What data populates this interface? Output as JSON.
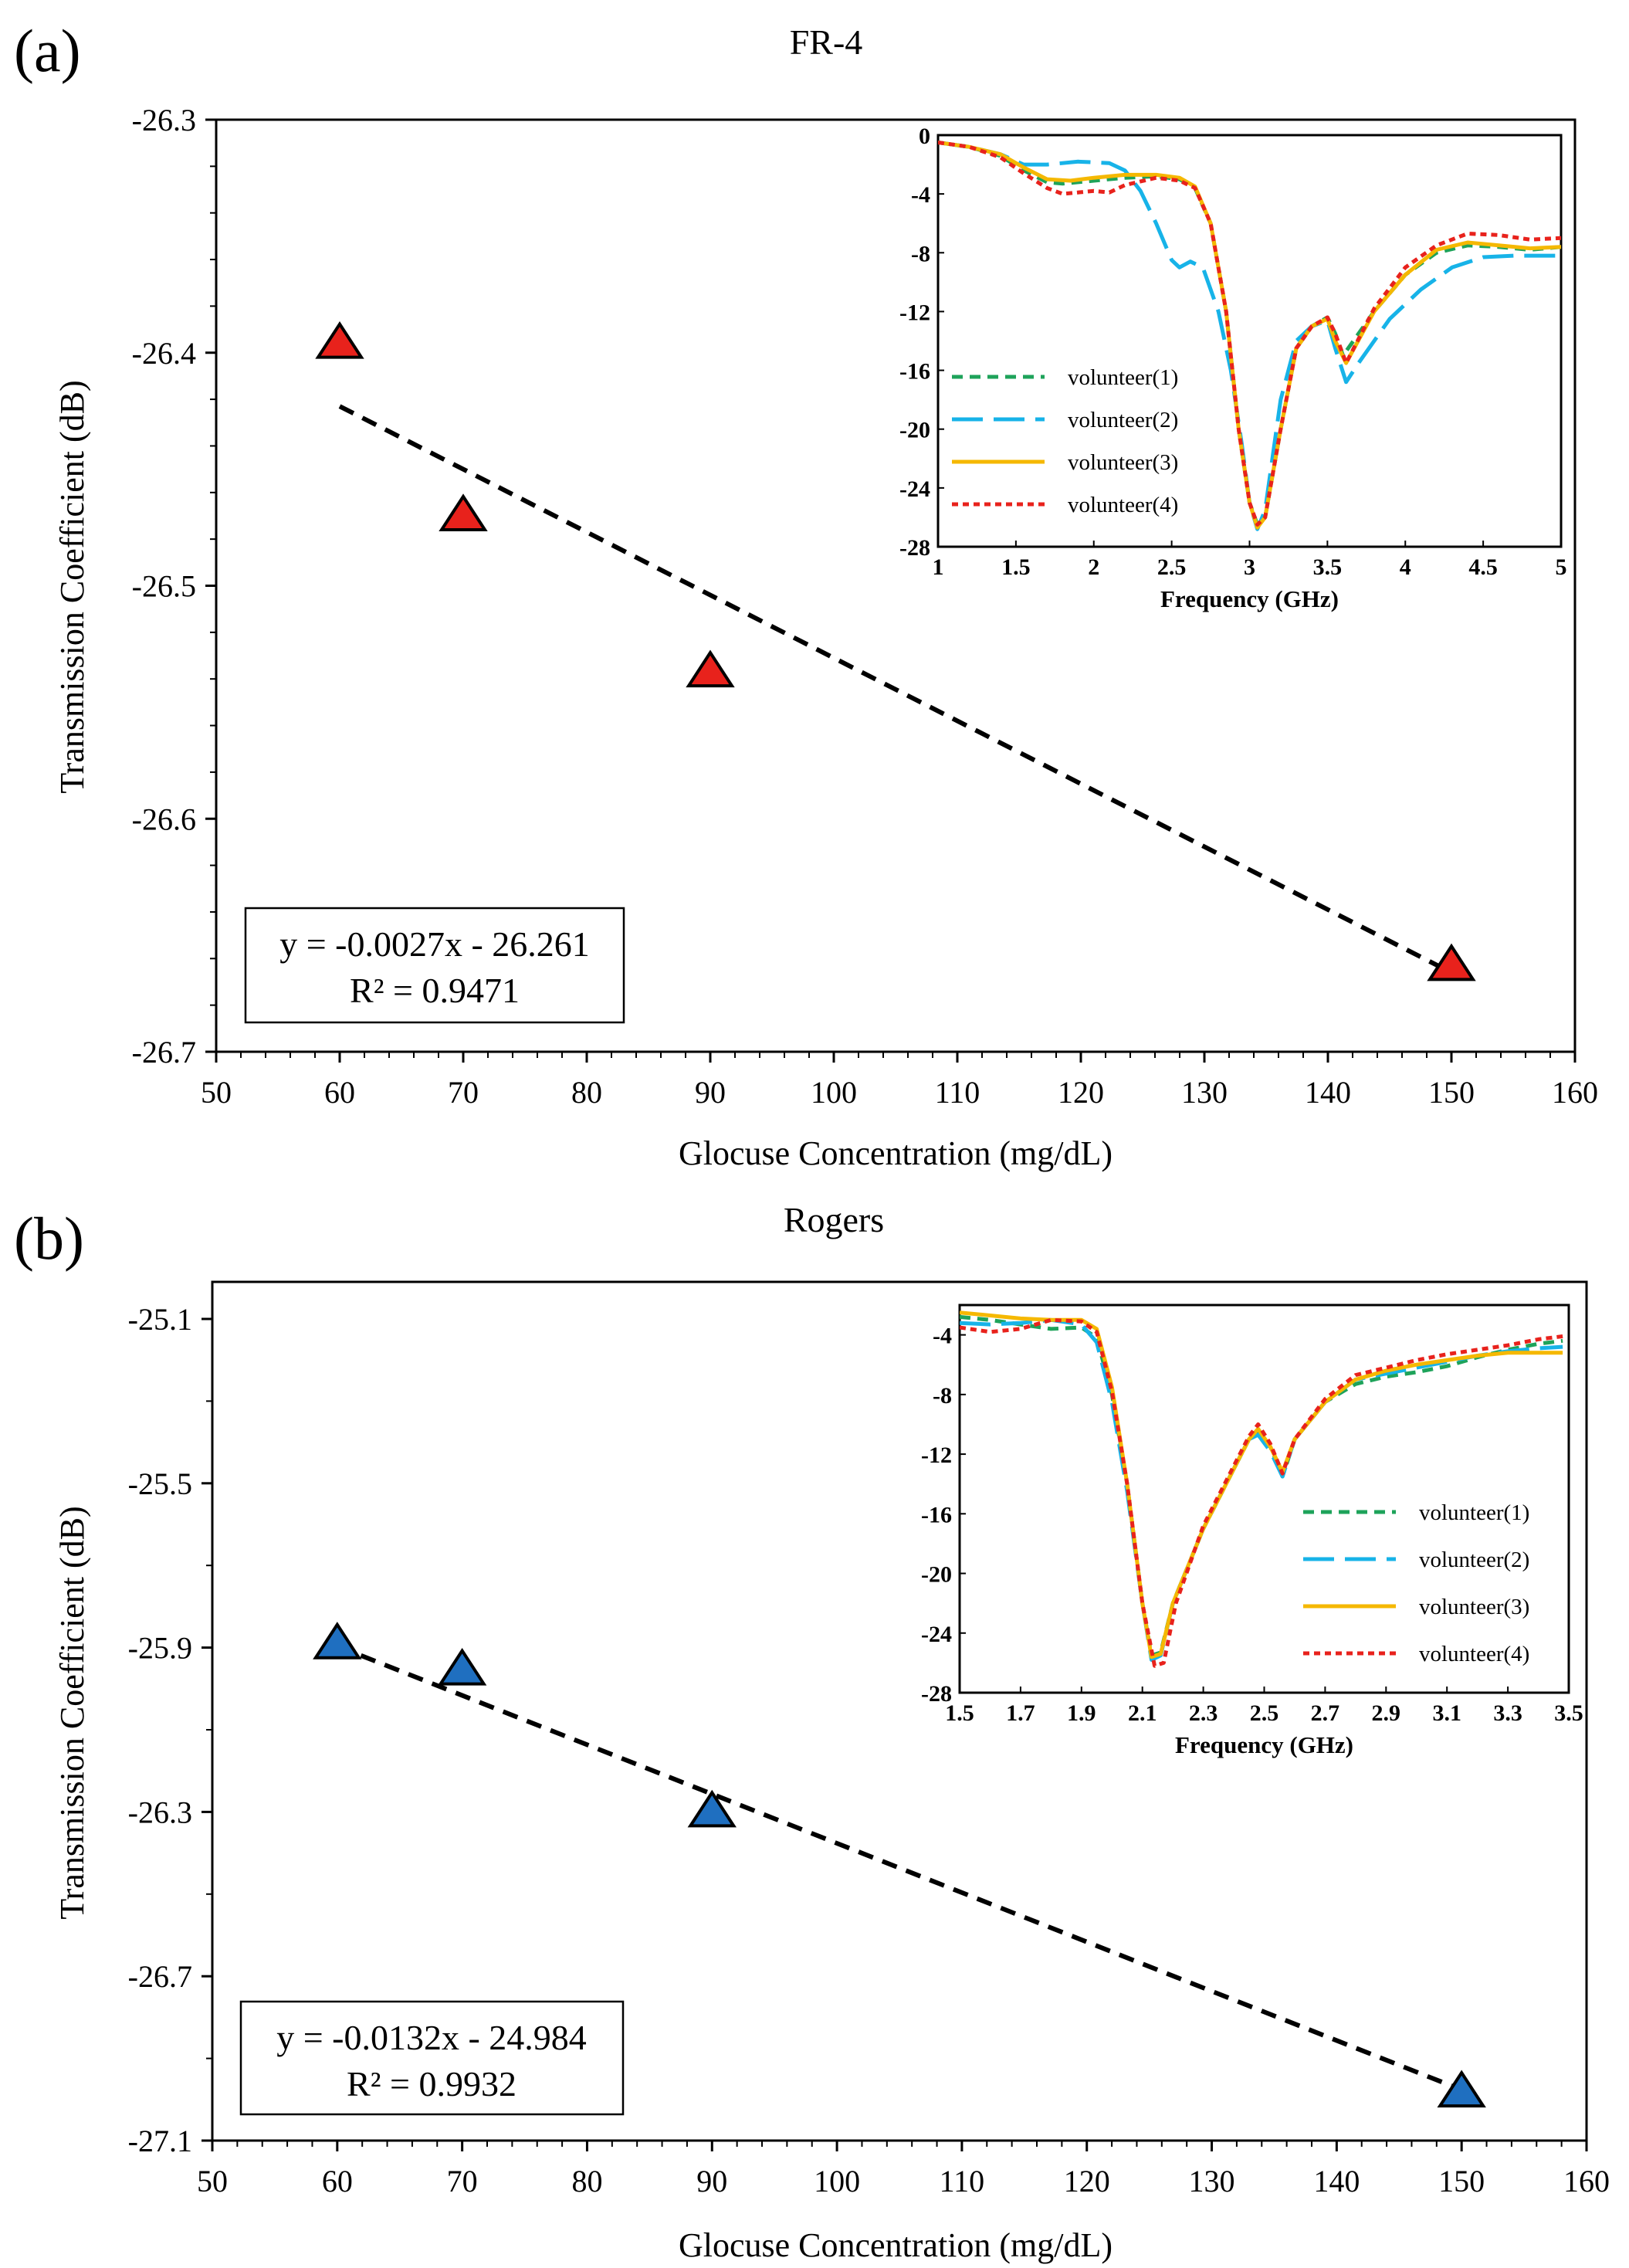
{
  "chart_data": [
    {
      "type": "scatter",
      "panel_label": "(a)",
      "title": "FR-4",
      "xlabel": "Glocuse Concentration (mg/dL)",
      "ylabel": "Transmission Coefficient (dB)",
      "xlim": [
        50,
        160
      ],
      "ylim": [
        -26.7,
        -26.3
      ],
      "xticks": [
        "50",
        "60",
        "70",
        "80",
        "90",
        "100",
        "110",
        "120",
        "130",
        "140",
        "150",
        "160"
      ],
      "yticks": [
        "-26.3",
        "-26.4",
        "-26.5",
        "-26.6",
        "-26.7"
      ],
      "marker_color": "#e8221c",
      "points": {
        "x": [
          60,
          70,
          90,
          150
        ],
        "y": [
          -26.396,
          -26.47,
          -26.537,
          -26.663
        ]
      },
      "trendline": {
        "slope": -0.0027,
        "intercept": -26.261,
        "x_range": [
          60,
          150
        ]
      },
      "equation": "y = -0.0027x - 26.261",
      "r_squared": "R² = 0.9471",
      "inset": {
        "type": "line",
        "xlabel": "Frequency (GHz)",
        "xlim": [
          1,
          5
        ],
        "ylim": [
          -28,
          0
        ],
        "xticks": [
          "1",
          "1.5",
          "2",
          "2.5",
          "3",
          "3.5",
          "4",
          "4.5",
          "5"
        ],
        "yticks": [
          "0",
          "-4",
          "-8",
          "-12",
          "-16",
          "-20",
          "-24",
          "-28"
        ],
        "legend_position": "left",
        "series": [
          {
            "name": "volunteer(1)",
            "color": "#1ea35a",
            "dash": "14,9",
            "x": [
              1,
              1.2,
              1.4,
              1.55,
              1.7,
              1.8,
              2.0,
              2.2,
              2.4,
              2.55,
              2.65,
              2.75,
              2.85,
              2.93,
              3.0,
              3.05,
              3.1,
              3.2,
              3.3,
              3.4,
              3.5,
              3.55,
              3.6,
              3.8,
              4.0,
              4.2,
              4.4,
              4.6,
              4.8,
              5
            ],
            "y": [
              -0.5,
              -0.8,
              -1.4,
              -2.4,
              -3.2,
              -3.3,
              -3.1,
              -2.9,
              -2.8,
              -3.0,
              -3.6,
              -6.0,
              -12.0,
              -20.0,
              -25.0,
              -26.5,
              -26.0,
              -20.0,
              -14.5,
              -13.0,
              -12.4,
              -13.5,
              -15.0,
              -12.0,
              -9.5,
              -8.0,
              -7.5,
              -7.6,
              -7.8,
              -7.6
            ]
          },
          {
            "name": "volunteer(2)",
            "color": "#17b3e8",
            "dash": "40,14",
            "x": [
              1,
              1.2,
              1.4,
              1.55,
              1.7,
              1.9,
              2.1,
              2.2,
              2.3,
              2.4,
              2.5,
              2.55,
              2.62,
              2.7,
              2.8,
              2.88,
              2.95,
              3.0,
              3.05,
              3.1,
              3.2,
              3.3,
              3.4,
              3.5,
              3.55,
              3.62,
              3.7,
              3.9,
              4.1,
              4.3,
              4.5,
              4.7,
              5
            ],
            "y": [
              -0.5,
              -0.8,
              -1.3,
              -2.0,
              -2.0,
              -1.8,
              -1.9,
              -2.4,
              -3.8,
              -6.0,
              -8.5,
              -9.0,
              -8.6,
              -9.0,
              -12.0,
              -16.0,
              -21.0,
              -25.0,
              -26.8,
              -25.5,
              -18.0,
              -14.0,
              -13.0,
              -12.6,
              -14.5,
              -16.8,
              -15.5,
              -12.5,
              -10.5,
              -9.0,
              -8.3,
              -8.2,
              -8.2
            ]
          },
          {
            "name": "volunteer(3)",
            "color": "#f5b800",
            "dash": "",
            "x": [
              1,
              1.2,
              1.4,
              1.55,
              1.7,
              1.85,
              2.0,
              2.2,
              2.4,
              2.55,
              2.65,
              2.75,
              2.85,
              2.93,
              3.0,
              3.05,
              3.1,
              3.2,
              3.3,
              3.4,
              3.5,
              3.55,
              3.62,
              3.8,
              4.0,
              4.2,
              4.4,
              4.6,
              4.8,
              5
            ],
            "y": [
              -0.5,
              -0.8,
              -1.3,
              -2.2,
              -3.0,
              -3.1,
              -2.9,
              -2.7,
              -2.7,
              -2.9,
              -3.5,
              -6.0,
              -12.0,
              -20.0,
              -25.0,
              -26.7,
              -26.0,
              -20.0,
              -14.5,
              -13.0,
              -12.5,
              -14.0,
              -15.5,
              -12.0,
              -9.5,
              -7.8,
              -7.3,
              -7.5,
              -7.7,
              -7.6
            ]
          },
          {
            "name": "volunteer(4)",
            "color": "#e8221c",
            "dash": "8,6",
            "x": [
              1,
              1.2,
              1.4,
              1.55,
              1.7,
              1.8,
              2.0,
              2.1,
              2.2,
              2.4,
              2.55,
              2.65,
              2.75,
              2.85,
              2.93,
              3.0,
              3.05,
              3.1,
              3.2,
              3.3,
              3.4,
              3.5,
              3.55,
              3.62,
              3.8,
              4.0,
              4.2,
              4.4,
              4.6,
              4.8,
              5
            ],
            "y": [
              -0.5,
              -0.8,
              -1.5,
              -2.6,
              -3.6,
              -4.0,
              -3.8,
              -3.9,
              -3.4,
              -2.9,
              -3.1,
              -3.6,
              -6.0,
              -12.0,
              -20.0,
              -25.0,
              -26.5,
              -26.0,
              -20.0,
              -14.5,
              -13.0,
              -12.4,
              -13.5,
              -15.5,
              -11.8,
              -9.0,
              -7.5,
              -6.7,
              -6.8,
              -7.1,
              -7.0
            ]
          }
        ]
      }
    },
    {
      "type": "scatter",
      "panel_label": "(b)",
      "title": "Rogers",
      "xlabel": "Glocuse Concentration (mg/dL)",
      "ylabel": "Transmission Coefficient (dB)",
      "xlim": [
        50,
        160
      ],
      "ylim": [
        -27.1,
        -24.9
      ],
      "xticks": [
        "50",
        "60",
        "70",
        "80",
        "90",
        "100",
        "110",
        "120",
        "130",
        "140",
        "150",
        "160"
      ],
      "yticks": [
        "-25.1",
        "-25.5",
        "-25.9",
        "-26.3",
        "-26.7",
        "-27.1"
      ],
      "marker_color": "#1f6fc0",
      "points": {
        "x": [
          60,
          70,
          90,
          150
        ],
        "y": [
          -25.77,
          -25.84,
          -26.22,
          -26.97
        ]
      },
      "trendline": {
        "slope": -0.0132,
        "intercept": -24.984,
        "x_range": [
          60,
          150
        ]
      },
      "equation": "y = -0.0132x - 24.984",
      "r_squared": "R² = 0.9932",
      "inset": {
        "type": "line",
        "xlabel": "Frequency (GHz)",
        "xlim": [
          1.5,
          3.5
        ],
        "ylim": [
          -28,
          -2
        ],
        "xticks": [
          "1.5",
          "1.7",
          "1.9",
          "2.1",
          "2.3",
          "2.5",
          "2.7",
          "2.9",
          "3.1",
          "3.3",
          "3.5"
        ],
        "yticks": [
          "-4",
          "-8",
          "-12",
          "-16",
          "-20",
          "-24",
          "-28"
        ],
        "legend_position": "right",
        "series": [
          {
            "name": "volunteer(1)",
            "color": "#1ea35a",
            "dash": "14,9",
            "x": [
              1.5,
              1.6,
              1.7,
              1.8,
              1.9,
              1.95,
              2.0,
              2.05,
              2.1,
              2.13,
              2.16,
              2.2,
              2.3,
              2.4,
              2.45,
              2.48,
              2.52,
              2.56,
              2.6,
              2.7,
              2.8,
              2.9,
              3.0,
              3.1,
              3.2,
              3.3,
              3.4,
              3.48
            ],
            "y": [
              -2.8,
              -3.0,
              -3.3,
              -3.6,
              -3.5,
              -4.2,
              -8.0,
              -14.0,
              -22.0,
              -25.5,
              -25.3,
              -22.0,
              -17.0,
              -13.0,
              -11.0,
              -10.5,
              -11.5,
              -13.5,
              -11.0,
              -8.5,
              -7.3,
              -6.8,
              -6.5,
              -6.1,
              -5.5,
              -5.0,
              -4.6,
              -4.4
            ]
          },
          {
            "name": "volunteer(2)",
            "color": "#17b3e8",
            "dash": "40,14",
            "x": [
              1.5,
              1.6,
              1.7,
              1.8,
              1.9,
              1.95,
              2.0,
              2.05,
              2.1,
              2.13,
              2.16,
              2.2,
              2.3,
              2.4,
              2.45,
              2.48,
              2.52,
              2.56,
              2.6,
              2.7,
              2.8,
              2.9,
              3.0,
              3.1,
              3.2,
              3.3,
              3.4,
              3.48
            ],
            "y": [
              -3.2,
              -3.3,
              -3.2,
              -3.0,
              -3.3,
              -4.5,
              -8.5,
              -14.5,
              -22.0,
              -25.8,
              -25.5,
              -22.0,
              -17.0,
              -13.0,
              -11.0,
              -10.7,
              -11.8,
              -13.5,
              -11.0,
              -8.5,
              -7.0,
              -6.6,
              -6.2,
              -5.8,
              -5.4,
              -5.1,
              -4.9,
              -4.8
            ]
          },
          {
            "name": "volunteer(3)",
            "color": "#f5b800",
            "dash": "",
            "x": [
              1.5,
              1.6,
              1.7,
              1.8,
              1.9,
              1.95,
              2.0,
              2.05,
              2.1,
              2.13,
              2.16,
              2.2,
              2.3,
              2.4,
              2.45,
              2.48,
              2.52,
              2.56,
              2.6,
              2.7,
              2.8,
              2.9,
              3.0,
              3.1,
              3.2,
              3.3,
              3.4,
              3.48
            ],
            "y": [
              -2.5,
              -2.7,
              -2.9,
              -3.0,
              -3.0,
              -3.6,
              -7.5,
              -14.0,
              -22.0,
              -25.6,
              -25.4,
              -22.0,
              -17.0,
              -13.0,
              -11.0,
              -10.3,
              -11.5,
              -13.2,
              -11.0,
              -8.5,
              -7.0,
              -6.4,
              -6.0,
              -5.7,
              -5.4,
              -5.2,
              -5.2,
              -5.2
            ]
          },
          {
            "name": "volunteer(4)",
            "color": "#e8221c",
            "dash": "8,6",
            "x": [
              1.5,
              1.6,
              1.7,
              1.8,
              1.9,
              1.95,
              2.0,
              2.05,
              2.1,
              2.14,
              2.17,
              2.21,
              2.3,
              2.4,
              2.45,
              2.48,
              2.52,
              2.56,
              2.6,
              2.7,
              2.8,
              2.9,
              3.0,
              3.1,
              3.2,
              3.3,
              3.4,
              3.48
            ],
            "y": [
              -3.5,
              -3.8,
              -3.6,
              -3.0,
              -3.1,
              -3.8,
              -7.8,
              -14.0,
              -22.0,
              -26.2,
              -26.0,
              -22.0,
              -16.8,
              -12.8,
              -10.8,
              -10.0,
              -11.3,
              -13.3,
              -11.0,
              -8.3,
              -6.7,
              -6.2,
              -5.7,
              -5.3,
              -5.0,
              -4.7,
              -4.3,
              -4.1
            ]
          }
        ]
      }
    }
  ]
}
